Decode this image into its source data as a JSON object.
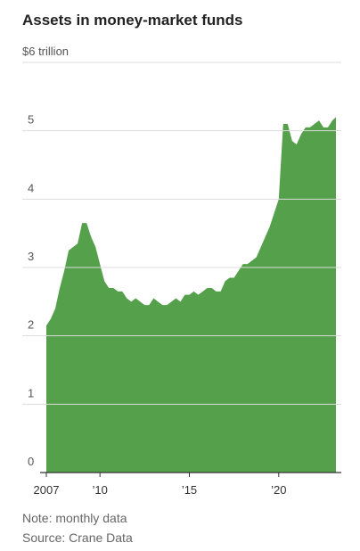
{
  "chart_data": {
    "type": "area",
    "title": "Assets in money-market funds",
    "note": "Note: monthly data",
    "source": "Source: Crane Data",
    "color": "#55a04a",
    "grid": true,
    "x": [
      2007,
      2007.25,
      2007.5,
      2007.75,
      2008,
      2008.25,
      2008.5,
      2008.75,
      2009,
      2009.25,
      2009.5,
      2009.75,
      2010,
      2010.25,
      2010.5,
      2010.75,
      2011,
      2011.25,
      2011.5,
      2011.75,
      2012,
      2012.25,
      2012.5,
      2012.75,
      2013,
      2013.25,
      2013.5,
      2013.75,
      2014,
      2014.25,
      2014.5,
      2014.75,
      2015,
      2015.25,
      2015.5,
      2015.75,
      2016,
      2016.25,
      2016.5,
      2016.75,
      2017,
      2017.25,
      2017.5,
      2017.75,
      2018,
      2018.25,
      2018.5,
      2018.75,
      2019,
      2019.25,
      2019.5,
      2019.75,
      2020,
      2020.25,
      2020.5,
      2020.75,
      2021,
      2021.25,
      2021.5,
      2021.75,
      2022,
      2022.25,
      2022.5,
      2022.75,
      2023,
      2023.2
    ],
    "values": [
      2.15,
      2.25,
      2.4,
      2.7,
      2.95,
      3.25,
      3.3,
      3.35,
      3.65,
      3.65,
      3.45,
      3.3,
      3.05,
      2.8,
      2.7,
      2.7,
      2.65,
      2.65,
      2.55,
      2.5,
      2.55,
      2.5,
      2.45,
      2.45,
      2.55,
      2.5,
      2.45,
      2.45,
      2.5,
      2.55,
      2.5,
      2.6,
      2.6,
      2.65,
      2.6,
      2.65,
      2.7,
      2.7,
      2.65,
      2.65,
      2.8,
      2.85,
      2.85,
      2.95,
      3.05,
      3.05,
      3.1,
      3.15,
      3.3,
      3.45,
      3.6,
      3.8,
      4.0,
      5.1,
      5.1,
      4.85,
      4.8,
      4.95,
      5.05,
      5.05,
      5.1,
      5.15,
      5.05,
      5.05,
      5.15,
      5.2
    ],
    "xlim": [
      2007,
      2023.2
    ],
    "xticks": [
      2007,
      {
        "value": 2010,
        "label": "’10"
      },
      {
        "value": 2015,
        "label": "’15"
      },
      {
        "value": 2020,
        "label": "’20"
      }
    ],
    "ylim": [
      0,
      6
    ],
    "yticks": [
      0,
      1,
      2,
      3,
      4,
      5,
      {
        "value": 6,
        "label": "$6 trillion"
      }
    ]
  }
}
